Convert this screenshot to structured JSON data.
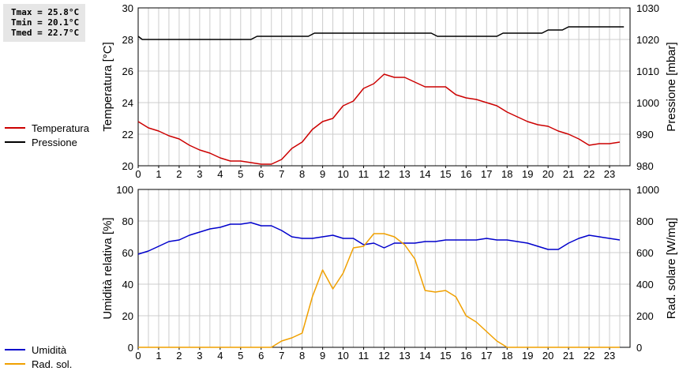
{
  "stats": {
    "tmax": "Tmax = 25.8°C",
    "tmin": "Tmin = 20.1°C",
    "tmed": "Tmed = 22.7°C"
  },
  "colors": {
    "temp": "#cc0000",
    "press": "#000000",
    "hum": "#0000cc",
    "rad": "#f0a000",
    "grid": "#cccccc"
  },
  "chart_data": [
    {
      "type": "line",
      "xlabel": "",
      "ylabel": "Temperatura [°C]",
      "y2label": "Pressione [mbar]",
      "xlim": [
        0,
        24
      ],
      "ylim": [
        20,
        30
      ],
      "y2lim": [
        980,
        1030
      ],
      "grid": true,
      "legend_position": "left",
      "xticks": [
        "0",
        "1",
        "2",
        "3",
        "4",
        "5",
        "6",
        "7",
        "8",
        "9",
        "10",
        "11",
        "12",
        "13",
        "14",
        "15",
        "16",
        "17",
        "18",
        "19",
        "20",
        "21",
        "22",
        "23"
      ],
      "yticks": [
        "20",
        "22",
        "24",
        "26",
        "28",
        "30"
      ],
      "y2ticks": [
        "980",
        "990",
        "1000",
        "1010",
        "1020",
        "1030"
      ],
      "series": [
        {
          "name": "Temperatura",
          "axis": "left",
          "x": [
            0,
            0.5,
            1,
            1.5,
            2,
            2.5,
            3,
            3.5,
            4,
            4.5,
            5,
            5.5,
            6,
            6.5,
            7,
            7.5,
            8,
            8.5,
            9,
            9.5,
            10,
            10.5,
            11,
            11.5,
            12,
            12.5,
            13,
            13.5,
            14,
            14.5,
            15,
            15.5,
            16,
            16.5,
            17,
            17.5,
            18,
            18.5,
            19,
            19.5,
            20,
            20.5,
            21,
            21.5,
            22,
            22.5,
            23,
            23.5
          ],
          "y": [
            22.8,
            22.4,
            22.2,
            21.9,
            21.7,
            21.3,
            21.0,
            20.8,
            20.5,
            20.3,
            20.3,
            20.2,
            20.1,
            20.1,
            20.4,
            21.1,
            21.5,
            22.3,
            22.8,
            23.0,
            23.8,
            24.1,
            24.9,
            25.2,
            25.8,
            25.6,
            25.6,
            25.3,
            25.0,
            25.0,
            25.0,
            24.5,
            24.3,
            24.2,
            24.0,
            23.8,
            23.4,
            23.1,
            22.8,
            22.6,
            22.5,
            22.2,
            22.0,
            21.7,
            21.3,
            21.4,
            21.4,
            21.5
          ]
        },
        {
          "name": "Pressione",
          "axis": "right",
          "x": [
            0,
            0.2,
            0.8,
            5.5,
            5.8,
            8.3,
            8.6,
            14.3,
            14.6,
            17.5,
            17.8,
            19.7,
            20,
            20.7,
            21,
            23.7
          ],
          "y": [
            1021,
            1020,
            1020,
            1020,
            1021,
            1021,
            1022,
            1022,
            1021,
            1021,
            1022,
            1022,
            1023,
            1023,
            1024,
            1024
          ]
        }
      ]
    },
    {
      "type": "line",
      "xlabel": "",
      "ylabel": "Umidità relativa [%]",
      "y2label": "Rad. solare [W/mq]",
      "xlim": [
        0,
        24
      ],
      "ylim": [
        0,
        100
      ],
      "y2lim": [
        0,
        1000
      ],
      "grid": true,
      "legend_position": "left",
      "xticks": [
        "0",
        "1",
        "2",
        "3",
        "4",
        "5",
        "6",
        "7",
        "8",
        "9",
        "10",
        "11",
        "12",
        "13",
        "14",
        "15",
        "16",
        "17",
        "18",
        "19",
        "20",
        "21",
        "22",
        "23"
      ],
      "yticks": [
        "0",
        "20",
        "40",
        "60",
        "80",
        "100"
      ],
      "y2ticks": [
        "0",
        "200",
        "400",
        "600",
        "800",
        "1000"
      ],
      "series": [
        {
          "name": "Umidità",
          "axis": "left",
          "x": [
            0,
            0.5,
            1,
            1.5,
            2,
            2.5,
            3,
            3.5,
            4,
            4.5,
            5,
            5.5,
            6,
            6.5,
            7,
            7.5,
            8,
            8.5,
            9,
            9.5,
            10,
            10.5,
            11,
            11.5,
            12,
            12.5,
            13,
            13.5,
            14,
            14.5,
            15,
            15.5,
            16,
            16.5,
            17,
            17.5,
            18,
            18.5,
            19,
            19.5,
            20,
            20.5,
            21,
            21.5,
            22,
            22.5,
            23,
            23.5
          ],
          "y": [
            59,
            61,
            64,
            67,
            68,
            71,
            73,
            75,
            76,
            78,
            78,
            79,
            77,
            77,
            74,
            70,
            69,
            69,
            70,
            71,
            69,
            69,
            65,
            66,
            63,
            66,
            66,
            66,
            67,
            67,
            68,
            68,
            68,
            68,
            69,
            68,
            68,
            67,
            66,
            64,
            62,
            62,
            66,
            69,
            71,
            70,
            69,
            68
          ]
        },
        {
          "name": "Rad. sol.",
          "axis": "right",
          "x": [
            0,
            0.5,
            1,
            1.5,
            2,
            2.5,
            3,
            3.5,
            4,
            4.5,
            5,
            5.5,
            6,
            6.5,
            7,
            7.5,
            8,
            8.5,
            9,
            9.5,
            10,
            10.5,
            11,
            11.5,
            12,
            12.5,
            13,
            13.5,
            14,
            14.5,
            15,
            15.5,
            16,
            16.5,
            17,
            17.5,
            18,
            18.5,
            19,
            19.5,
            20,
            20.5,
            21,
            21.5,
            22,
            22.5,
            23,
            23.5
          ],
          "y": [
            0,
            0,
            0,
            0,
            0,
            0,
            0,
            0,
            0,
            0,
            0,
            0,
            0,
            0,
            40,
            60,
            90,
            320,
            490,
            370,
            470,
            630,
            640,
            720,
            720,
            700,
            650,
            560,
            360,
            350,
            360,
            320,
            200,
            160,
            100,
            40,
            0,
            0,
            0,
            0,
            0,
            0,
            0,
            0,
            0,
            0,
            0,
            0
          ]
        }
      ]
    }
  ]
}
